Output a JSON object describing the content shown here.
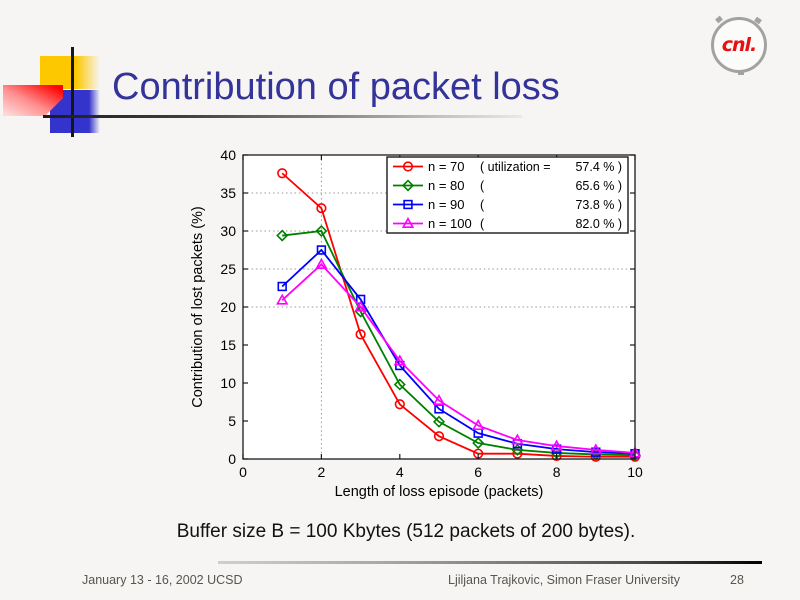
{
  "slide": {
    "title": "Contribution of packet loss",
    "caption": "Buffer size B = 100 Kbytes (512 packets of 200 bytes).",
    "logo_text": "cnl.",
    "footer": {
      "left": "January 13 - 16, 2002 UCSD",
      "center": "Ljiljana Trajkovic, Simon Fraser University",
      "page": "28"
    }
  },
  "colors": {
    "title": "#333399",
    "axis": "#1a1a1a",
    "grid": "#999999",
    "footer_text": "#56564f",
    "logo_red": "#e81010"
  },
  "chart_data": {
    "type": "line",
    "title": "",
    "xlabel": "Length of loss episode (packets)",
    "ylabel": "Contribution of lost packets (%)",
    "xlim": [
      0,
      10
    ],
    "ylim": [
      0,
      40
    ],
    "xticks": [
      0,
      2,
      4,
      6,
      8,
      10
    ],
    "yticks": [
      0,
      5,
      10,
      15,
      20,
      25,
      30,
      35,
      40
    ],
    "grid_x": [
      2
    ],
    "grid_y": [
      20,
      25,
      30,
      35
    ],
    "grid_style": "dotted",
    "legend_position": "top-right",
    "x": [
      1,
      2,
      3,
      4,
      5,
      6,
      7,
      8,
      9,
      10
    ],
    "series": [
      {
        "name": "n = 70",
        "utilization": "57.4 %",
        "legend_left": "( utilization =",
        "legend_right": "57.4 % )",
        "color": "#ff0000",
        "marker": "circle",
        "values": [
          37.6,
          33.0,
          16.4,
          7.2,
          3.0,
          0.7,
          0.7,
          0.4,
          0.3,
          0.3
        ]
      },
      {
        "name": "n = 80",
        "utilization": "65.6 %",
        "legend_left": "(",
        "legend_right": "65.6 % )",
        "color": "#008000",
        "marker": "diamond",
        "values": [
          29.4,
          30.0,
          19.4,
          9.8,
          4.9,
          2.1,
          1.2,
          0.8,
          0.6,
          0.5
        ]
      },
      {
        "name": "n = 90",
        "utilization": "73.8 %",
        "legend_left": "(",
        "legend_right": "73.8 % )",
        "color": "#0000ff",
        "marker": "square",
        "values": [
          22.7,
          27.5,
          21.0,
          12.3,
          6.6,
          3.4,
          2.0,
          1.3,
          0.9,
          0.7
        ]
      },
      {
        "name": "n = 100",
        "utilization": "82.0 %",
        "legend_left": "(",
        "legend_right": "82.0 % )",
        "color": "#ff00ff",
        "marker": "triangle",
        "values": [
          20.9,
          25.6,
          20.0,
          12.9,
          7.7,
          4.4,
          2.5,
          1.7,
          1.2,
          0.8
        ]
      }
    ]
  }
}
